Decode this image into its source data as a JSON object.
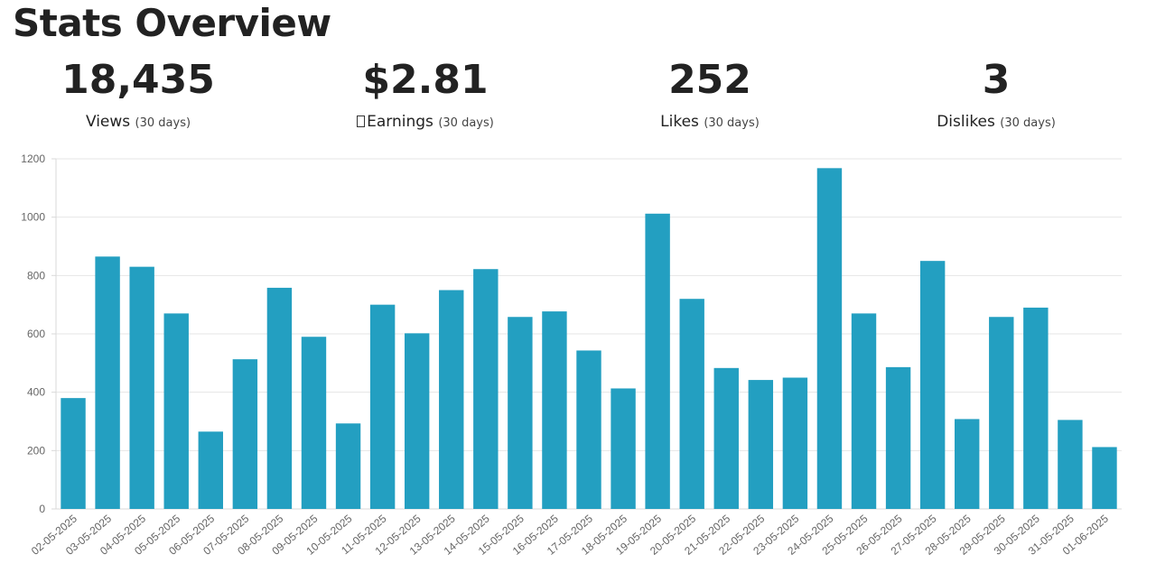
{
  "page": {
    "title": "Stats Overview"
  },
  "stats": {
    "views": {
      "value": "18,435",
      "label": "Views",
      "period": "(30 days)"
    },
    "earnings": {
      "value": "$2.81",
      "label": "Earnings",
      "period": "(30 days)",
      "icon": "missing-glyph-icon"
    },
    "likes": {
      "value": "252",
      "label": "Likes",
      "period": "(30 days)"
    },
    "dislikes": {
      "value": "3",
      "label": "Dislikes",
      "period": "(30 days)"
    }
  },
  "chart_data": {
    "type": "bar",
    "title": "",
    "xlabel": "",
    "ylabel": "",
    "ylim": [
      0,
      1200
    ],
    "yticks": [
      0,
      200,
      400,
      600,
      800,
      1000,
      1200
    ],
    "grid": true,
    "bar_color": "#239fc1",
    "categories": [
      "02-05-2025",
      "03-05-2025",
      "04-05-2025",
      "05-05-2025",
      "06-05-2025",
      "07-05-2025",
      "08-05-2025",
      "09-05-2025",
      "10-05-2025",
      "11-05-2025",
      "12-05-2025",
      "13-05-2025",
      "14-05-2025",
      "15-05-2025",
      "16-05-2025",
      "17-05-2025",
      "18-05-2025",
      "19-05-2025",
      "20-05-2025",
      "21-05-2025",
      "22-05-2025",
      "23-05-2025",
      "24-05-2025",
      "25-05-2025",
      "26-05-2025",
      "27-05-2025",
      "28-05-2025",
      "29-05-2025",
      "30-05-2025",
      "31-05-2025",
      "01-06-2025"
    ],
    "values": [
      380,
      865,
      830,
      670,
      265,
      513,
      758,
      590,
      293,
      700,
      602,
      750,
      822,
      658,
      677,
      543,
      413,
      1012,
      720,
      483,
      442,
      450,
      1168,
      670,
      486,
      850,
      308,
      658,
      690,
      305,
      212
    ]
  }
}
